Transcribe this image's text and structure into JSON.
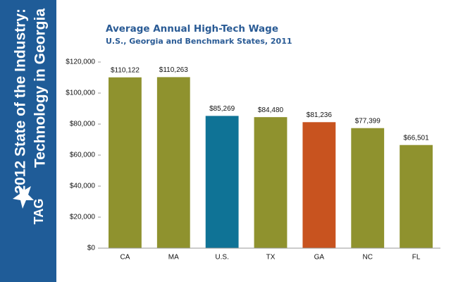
{
  "sidebar": {
    "title_line1": "2012 State of the Industry:",
    "title_line2": "Technology in Georgia",
    "logo": "TAG"
  },
  "chart_data": {
    "type": "bar",
    "title": "Average Annual High-Tech Wage",
    "subtitle": "U.S., Georgia and Benchmark States, 2011",
    "categories": [
      "CA",
      "MA",
      "U.S.",
      "TX",
      "GA",
      "NC",
      "FL"
    ],
    "values": [
      110122,
      110263,
      85269,
      84480,
      81236,
      77399,
      66501
    ],
    "value_labels": [
      "$110,122",
      "$110,263",
      "$85,269",
      "$84,480",
      "$81,236",
      "$77,399",
      "$66,501"
    ],
    "colors": [
      "#8f922e",
      "#8f922e",
      "#0f7396",
      "#8f922e",
      "#c8531f",
      "#8f922e",
      "#8f922e"
    ],
    "ylim": [
      0,
      120000
    ],
    "yticks": [
      {
        "value": 0,
        "label": "$0"
      },
      {
        "value": 20000,
        "label": "$20,000"
      },
      {
        "value": 40000,
        "label": "$40,000"
      },
      {
        "value": 60000,
        "label": "$60,000"
      },
      {
        "value": 80000,
        "label": "$80,000"
      },
      {
        "value": 100000,
        "label": "$100,000"
      },
      {
        "value": 120000,
        "label": "$120,000"
      }
    ],
    "grid": false
  }
}
